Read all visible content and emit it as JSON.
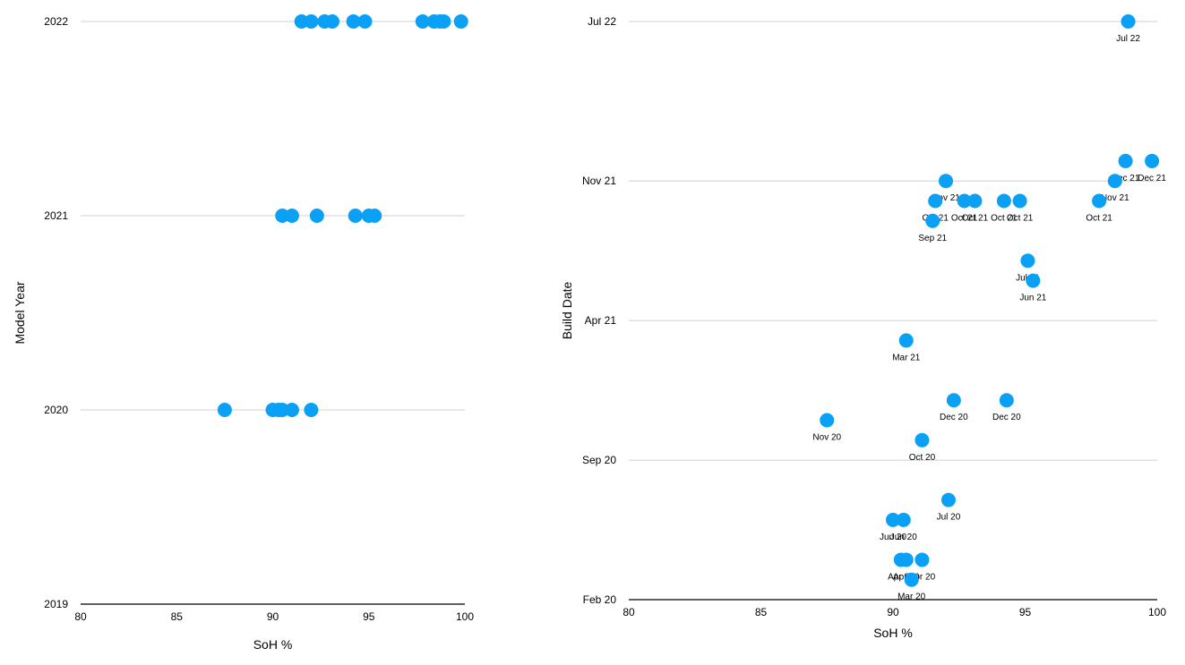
{
  "colors": {
    "point": "#0aa0f5",
    "grid": "#d0d0d0",
    "axis": "#000000"
  },
  "chart_data": [
    {
      "type": "scatter",
      "xlabel": "SoH %",
      "ylabel": "Model Year",
      "xlim": [
        80,
        100
      ],
      "ylim": [
        2019,
        2022
      ],
      "x_ticks": [
        "80",
        "85",
        "90",
        "95",
        "100"
      ],
      "y_ticks": [
        "2019",
        "2020",
        "2021",
        "2022"
      ],
      "grid": "horizontal",
      "points": [
        {
          "x": 87.5,
          "y": 2020
        },
        {
          "x": 90.0,
          "y": 2020
        },
        {
          "x": 90.3,
          "y": 2020
        },
        {
          "x": 90.5,
          "y": 2020
        },
        {
          "x": 91.0,
          "y": 2020
        },
        {
          "x": 92.0,
          "y": 2020
        },
        {
          "x": 90.5,
          "y": 2021
        },
        {
          "x": 91.0,
          "y": 2021
        },
        {
          "x": 92.3,
          "y": 2021
        },
        {
          "x": 94.3,
          "y": 2021
        },
        {
          "x": 95.0,
          "y": 2021
        },
        {
          "x": 95.3,
          "y": 2021
        },
        {
          "x": 91.5,
          "y": 2022
        },
        {
          "x": 92.0,
          "y": 2022
        },
        {
          "x": 92.7,
          "y": 2022
        },
        {
          "x": 93.1,
          "y": 2022
        },
        {
          "x": 94.2,
          "y": 2022
        },
        {
          "x": 94.8,
          "y": 2022
        },
        {
          "x": 97.8,
          "y": 2022
        },
        {
          "x": 98.4,
          "y": 2022
        },
        {
          "x": 98.7,
          "y": 2022
        },
        {
          "x": 98.9,
          "y": 2022
        },
        {
          "x": 99.8,
          "y": 2022
        }
      ]
    },
    {
      "type": "scatter",
      "xlabel": "SoH %",
      "ylabel": "Build Date",
      "xlim": [
        80,
        100
      ],
      "ylim": [
        "Feb 20",
        "Jul 22"
      ],
      "x_ticks": [
        "80",
        "85",
        "90",
        "95",
        "100"
      ],
      "y_ticks": [
        "Feb 20",
        "Sep 20",
        "Apr 21",
        "Nov 21",
        "Jul 22"
      ],
      "grid": "horizontal",
      "points": [
        {
          "x": 98.9,
          "y": "Jul 22",
          "label": "Jul 22"
        },
        {
          "x": 98.8,
          "y": "Dec 21",
          "label": "Dec 21"
        },
        {
          "x": 99.8,
          "y": "Dec 21",
          "label": "Dec 21"
        },
        {
          "x": 92.0,
          "y": "Nov 21",
          "label": "Nov 21"
        },
        {
          "x": 98.4,
          "y": "Nov 21",
          "label": "Nov 21"
        },
        {
          "x": 91.6,
          "y": "Oct 21",
          "label": "Oct 21"
        },
        {
          "x": 92.7,
          "y": "Oct 21",
          "label": "Oct 21"
        },
        {
          "x": 93.1,
          "y": "Oct 21",
          "label": "Oct 21"
        },
        {
          "x": 94.2,
          "y": "Oct 21",
          "label": "Oct 21"
        },
        {
          "x": 94.8,
          "y": "Oct 21",
          "label": "Oct 21"
        },
        {
          "x": 97.8,
          "y": "Oct 21",
          "label": "Oct 21"
        },
        {
          "x": 91.5,
          "y": "Sep 21",
          "label": "Sep 21"
        },
        {
          "x": 95.1,
          "y": "Jul 21",
          "label": "Jul 21"
        },
        {
          "x": 95.3,
          "y": "Jun 21",
          "label": "Jun 21"
        },
        {
          "x": 90.5,
          "y": "Mar 21",
          "label": "Mar 21"
        },
        {
          "x": 92.3,
          "y": "Dec 20",
          "label": "Dec 20"
        },
        {
          "x": 94.3,
          "y": "Dec 20",
          "label": "Dec 20"
        },
        {
          "x": 87.5,
          "y": "Nov 20",
          "label": "Nov 20"
        },
        {
          "x": 91.1,
          "y": "Oct 20",
          "label": "Oct 20"
        },
        {
          "x": 92.1,
          "y": "Jul 20",
          "label": "Jul 20"
        },
        {
          "x": 90.0,
          "y": "Jun 20",
          "label": "Jun 20"
        },
        {
          "x": 90.4,
          "y": "Jun 20",
          "label": "Jun 20"
        },
        {
          "x": 90.3,
          "y": "Apr 20",
          "label": "Apr 20"
        },
        {
          "x": 90.5,
          "y": "Apr 20",
          "label": "Apr 20"
        },
        {
          "x": 91.1,
          "y": "Apr 20",
          "label": "Apr 20"
        },
        {
          "x": 90.7,
          "y": "Mar 20",
          "label": "Mar 20"
        }
      ]
    }
  ]
}
